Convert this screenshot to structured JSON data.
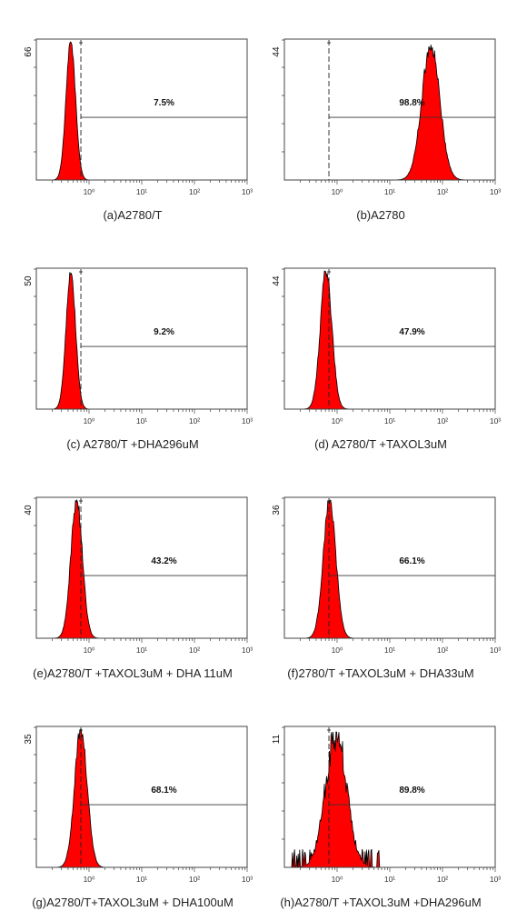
{
  "figure": {
    "background": "#ffffff",
    "fill_color": "#ff0000",
    "outline_color": "#000000"
  },
  "chart_data": [
    {
      "type": "histogram",
      "panel": "a",
      "caption": "(a)A2780/T",
      "ymax_label": "66",
      "gate_percent_label": "7.5%",
      "x_scale": "log",
      "x_ticks": [
        "10⁰",
        "10¹",
        "10²",
        "10³"
      ],
      "xlim": [
        0.1,
        1000
      ],
      "gate_start": 0.7,
      "peak": {
        "center": 0.45,
        "spread": 0.09,
        "height_fraction": 0.98,
        "noise": "low"
      }
    },
    {
      "type": "histogram",
      "panel": "b",
      "caption": "(b)A2780",
      "ymax_label": "44",
      "gate_percent_label": "98.8%",
      "x_scale": "log",
      "x_ticks": [
        "10⁰",
        "10¹",
        "10²",
        "10³"
      ],
      "xlim": [
        0.1,
        1000
      ],
      "gate_start": 0.7,
      "peak": {
        "center": 60,
        "spread": 0.17,
        "height_fraction": 0.96,
        "noise": "medium"
      }
    },
    {
      "type": "histogram",
      "panel": "c",
      "caption": "(c) A2780/T +DHA296uM",
      "ymax_label": "50",
      "gate_percent_label": "9.2%",
      "x_scale": "log",
      "x_ticks": [
        "10⁰",
        "10¹",
        "10²",
        "10³"
      ],
      "xlim": [
        0.1,
        1000
      ],
      "gate_start": 0.7,
      "peak": {
        "center": 0.45,
        "spread": 0.09,
        "height_fraction": 0.98,
        "noise": "low"
      }
    },
    {
      "type": "histogram",
      "panel": "d",
      "caption": "(d) A2780/T +TAXOL3uM",
      "ymax_label": "44",
      "gate_percent_label": "47.9%",
      "x_scale": "log",
      "x_ticks": [
        "10⁰",
        "10¹",
        "10²",
        "10³"
      ],
      "xlim": [
        0.1,
        1000
      ],
      "gate_start": 0.7,
      "peak": {
        "center": 0.62,
        "spread": 0.11,
        "height_fraction": 0.98,
        "noise": "medium"
      }
    },
    {
      "type": "histogram",
      "panel": "e",
      "caption": "(e)A2780/T +TAXOL3uM + DHA 11uM",
      "ymax_label": "40",
      "gate_percent_label": "43.2%",
      "x_scale": "log",
      "x_ticks": [
        "10⁰",
        "10¹",
        "10²",
        "10³"
      ],
      "xlim": [
        0.1,
        1000
      ],
      "gate_start": 0.7,
      "peak": {
        "center": 0.58,
        "spread": 0.11,
        "height_fraction": 0.98,
        "noise": "medium"
      }
    },
    {
      "type": "histogram",
      "panel": "f",
      "caption": "(f)2780/T +TAXOL3uM + DHA33uM",
      "ymax_label": "36",
      "gate_percent_label": "66.1%",
      "x_scale": "log",
      "x_ticks": [
        "10⁰",
        "10¹",
        "10²",
        "10³"
      ],
      "xlim": [
        0.1,
        1000
      ],
      "gate_start": 0.7,
      "peak": {
        "center": 0.72,
        "spread": 0.12,
        "height_fraction": 0.98,
        "noise": "medium"
      }
    },
    {
      "type": "histogram",
      "panel": "g",
      "caption": "(g)A2780/T+TAXOL3uM + DHA100uM",
      "ymax_label": "35",
      "gate_percent_label": "68.1%",
      "x_scale": "log",
      "x_ticks": [
        "10⁰",
        "10¹",
        "10²",
        "10³"
      ],
      "xlim": [
        0.1,
        1000
      ],
      "gate_start": 0.7,
      "peak": {
        "center": 0.7,
        "spread": 0.12,
        "height_fraction": 0.98,
        "noise": "medium"
      }
    },
    {
      "type": "histogram",
      "panel": "h",
      "caption": "(h)A2780/T +TAXOL3uM +DHA296uM",
      "ymax_label": "11",
      "gate_percent_label": "89.8%",
      "x_scale": "log",
      "x_ticks": [
        "10⁰",
        "10¹",
        "10²",
        "10³"
      ],
      "xlim": [
        0.1,
        1000
      ],
      "gate_start": 0.7,
      "peak": {
        "center": 0.95,
        "spread": 0.2,
        "height_fraction": 0.96,
        "noise": "high"
      }
    }
  ]
}
